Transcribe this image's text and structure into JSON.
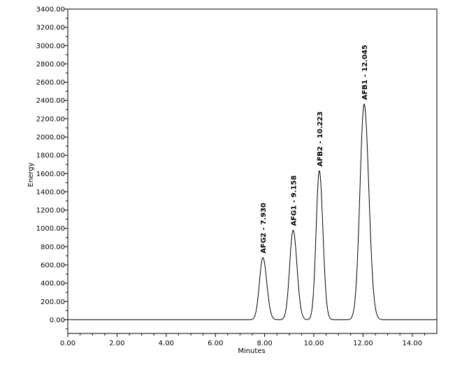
{
  "chart_data": {
    "type": "line",
    "title": "",
    "xlabel": "Minutes",
    "ylabel": "Energy",
    "xlim": [
      0,
      15
    ],
    "ylim": [
      -150,
      3400
    ],
    "grid": false,
    "x_ticks": [
      0,
      2,
      4,
      6,
      8,
      10,
      12,
      14
    ],
    "x_tick_labels": [
      "0.00",
      "2.00",
      "4.00",
      "6.00",
      "8.00",
      "10.00",
      "12.00",
      "14.00"
    ],
    "y_ticks": [
      0,
      200,
      400,
      600,
      800,
      1000,
      1200,
      1400,
      1600,
      1800,
      2000,
      2200,
      2400,
      2600,
      2800,
      3000,
      3200,
      3400
    ],
    "y_tick_labels": [
      "0.00",
      "200.00",
      "400.00",
      "600.00",
      "800.00",
      "1000.00",
      "1200.00",
      "1400.00",
      "1600.00",
      "1800.00",
      "2000.00",
      "2200.00",
      "2400.00",
      "2600.00",
      "2800.00",
      "3000.00",
      "3200.00",
      "3400.00"
    ],
    "baseline": 0,
    "peaks": [
      {
        "label": "AFG2 - 7.930",
        "rt": 7.93,
        "height": 680,
        "width": 0.14
      },
      {
        "label": "AFG1 - 9.158",
        "rt": 9.158,
        "height": 980,
        "width": 0.14
      },
      {
        "label": "AFB2 - 10.223",
        "rt": 10.223,
        "height": 1630,
        "width": 0.13
      },
      {
        "label": "AFB1 - 12.045",
        "rt": 12.045,
        "height": 2360,
        "width": 0.17
      }
    ]
  }
}
